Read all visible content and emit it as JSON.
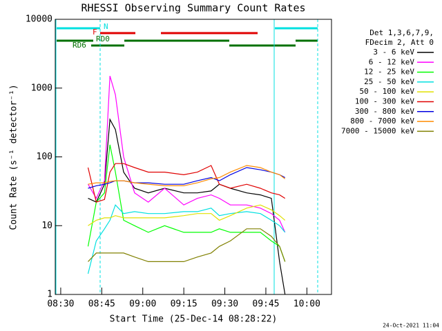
{
  "flags": [
    "N",
    "F",
    "RD0",
    "RD6"
  ],
  "chart_data": {
    "type": "line",
    "title": "RHESSI Observing Summary Count Rates",
    "x_label": "Start Time (25-Dec-14 08:28:22)",
    "y_label": "Count Rate (s⁻¹ detector⁻¹)",
    "timestamp": "24-Oct-2021 11:04",
    "legend_header": [
      "Det 1,3,6,7,9,",
      "FDecim 2, Att 0"
    ],
    "log_y": true,
    "xlim": [
      508,
      609
    ],
    "ylim": [
      1,
      10000
    ],
    "xticks": [
      {
        "value": 510,
        "label": "08:30"
      },
      {
        "value": 525,
        "label": "08:45"
      },
      {
        "value": 540,
        "label": "09:00"
      },
      {
        "value": 555,
        "label": "09:15"
      },
      {
        "value": 570,
        "label": "09:30"
      },
      {
        "value": 585,
        "label": "09:45"
      },
      {
        "value": 600,
        "label": "10:00"
      }
    ],
    "yticks": [
      1,
      10,
      100,
      1000,
      10000
    ],
    "x": [
      520,
      523,
      526,
      528,
      530,
      533,
      537,
      542,
      548,
      555,
      560,
      565,
      568,
      572,
      578,
      583,
      587,
      590,
      592
    ],
    "series": [
      {
        "name": "3 - 6 keV",
        "color": "#000000",
        "values": [
          25,
          22,
          40,
          350,
          250,
          60,
          35,
          30,
          35,
          30,
          30,
          32,
          40,
          35,
          30,
          28,
          25,
          3,
          1
        ]
      },
      {
        "name": "6 - 12 keV",
        "color": "#ff00ff",
        "values": [
          40,
          25,
          45,
          1500,
          800,
          100,
          30,
          22,
          35,
          20,
          25,
          28,
          25,
          20,
          20,
          18,
          15,
          12,
          8
        ]
      },
      {
        "name": "12 - 25 keV",
        "color": "#00ff00",
        "values": [
          5,
          22,
          30,
          150,
          60,
          12,
          10,
          8,
          10,
          8,
          8,
          8,
          9,
          8,
          8,
          8,
          6,
          5,
          3
        ]
      },
      {
        "name": "25 - 50 keV",
        "color": "#00e0e0",
        "values": [
          2,
          6,
          9,
          12,
          20,
          15,
          16,
          15,
          15,
          16,
          16,
          18,
          14,
          15,
          16,
          15,
          12,
          10,
          8
        ]
      },
      {
        "name": "50 - 100 keV",
        "color": "#e0e000",
        "values": [
          10,
          12,
          13,
          13,
          14,
          13,
          13,
          13,
          13,
          14,
          15,
          15,
          12,
          14,
          18,
          20,
          17,
          14,
          12
        ]
      },
      {
        "name": "100 - 300 keV",
        "color": "#e00000",
        "values": [
          70,
          22,
          24,
          60,
          80,
          80,
          70,
          60,
          60,
          55,
          60,
          75,
          40,
          35,
          40,
          35,
          30,
          28,
          25
        ]
      },
      {
        "name": "300 - 800 keV",
        "color": "#0000e0",
        "values": [
          35,
          38,
          40,
          42,
          45,
          45,
          42,
          42,
          40,
          40,
          45,
          50,
          45,
          55,
          70,
          65,
          60,
          55,
          50
        ]
      },
      {
        "name": "800 - 7000 keV",
        "color": "#ff8c00",
        "values": [
          40,
          42,
          42,
          44,
          45,
          45,
          42,
          40,
          38,
          38,
          42,
          48,
          50,
          60,
          75,
          70,
          60,
          55,
          48
        ]
      },
      {
        "name": "7000 - 15000 keV",
        "color": "#808000",
        "values": [
          3,
          4,
          4,
          4,
          4,
          4,
          3.5,
          3,
          3,
          3,
          3.5,
          4,
          5,
          6,
          9,
          9,
          7,
          5,
          3
        ]
      }
    ]
  }
}
